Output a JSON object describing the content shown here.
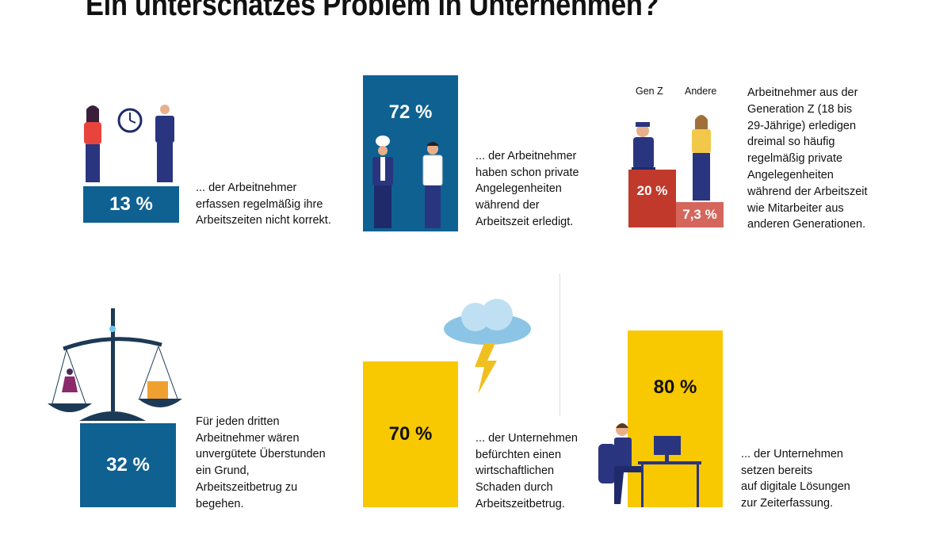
{
  "title": "Ein unterschätzes Problem in Unternehmen?",
  "colors": {
    "blue": "#0f6192",
    "yellow": "#f8c800",
    "red": "#c0392b",
    "light_red": "#d4665c"
  },
  "panels": [
    {
      "value": "13 %",
      "text": "... der Arbeitnehmer\nerfassen regelmäßig ihre\nArbeitszeiten nicht korrekt.",
      "icon": "people-with-clock-icon"
    },
    {
      "value": "72 %",
      "text": "... der Arbeitnehmer\nhaben schon private\nAngelegenheiten\nwährend der\nArbeitszeit erledigt.",
      "icon": "chef-and-worker-icon"
    },
    {
      "labels": [
        "Gen Z",
        "Andere"
      ],
      "values": [
        "20 %",
        "7,3 %"
      ],
      "text": "Arbeitnehmer aus der\nGeneration Z (18 bis\n29-Jährige) erledigen\ndreimal so häufig\nregelmäßig private\nAngelegenheiten\nwährend der Arbeitszeit\nwie Mitarbeiter aus\nanderen Generationen.",
      "icon": "people-standing-icon"
    },
    {
      "value": "32 %",
      "text": "Für jeden dritten\nArbeitnehmer wären\nunvergütete Überstunden\nein Grund,\nArbeitszeitbetrug zu\nbegehen.",
      "icon": "balance-scale-icon"
    },
    {
      "value": "70 %",
      "text": "... der Unternehmen\nbefürchten einen\nwirtschaftlichen\nSchaden durch\nArbeitszeitbetrug.",
      "icon": "storm-cloud-icon"
    },
    {
      "value": "80 %",
      "text": "... der Unternehmen\nsetzen bereits\nauf digitale Lösungen\nzur Zeiterfassung.",
      "icon": "person-at-computer-icon"
    }
  ]
}
